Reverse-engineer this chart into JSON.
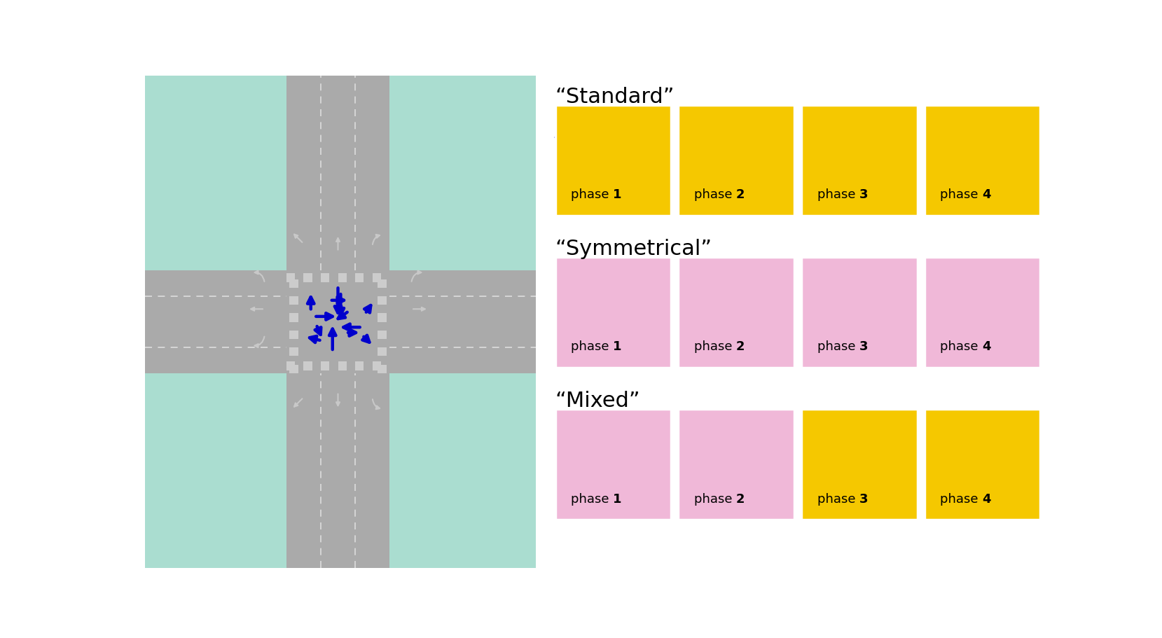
{
  "background_color": "#ffffff",
  "road_color": "#aaaaaa",
  "grass_color": "#aaddd0",
  "lane_line_color": "#cccccc",
  "white_color": "#ffffff",
  "arrow_blue": "#0000cc",
  "road_arrow_color": "#cccccc",
  "yellow_bg": "#f5c800",
  "pink_bg": "#f0b8d8",
  "phase_label_fontsize": 13,
  "section_title_fontsize": 22,
  "standard_title": "“Standard”",
  "symmetrical_title": "“Symmetrical”",
  "mixed_title": "“Mixed”",
  "phase_labels": [
    "phase ",
    "phase ",
    "phase ",
    "phase "
  ],
  "phase_numbers": [
    "1",
    "2",
    "3",
    "4"
  ],
  "row_colors": [
    [
      "#f5c800",
      "#f5c800",
      "#f5c800",
      "#f5c800"
    ],
    [
      "#f0b8d8",
      "#f0b8d8",
      "#f0b8d8",
      "#f0b8d8"
    ],
    [
      "#f0b8d8",
      "#f0b8d8",
      "#f5c800",
      "#f5c800"
    ]
  ]
}
